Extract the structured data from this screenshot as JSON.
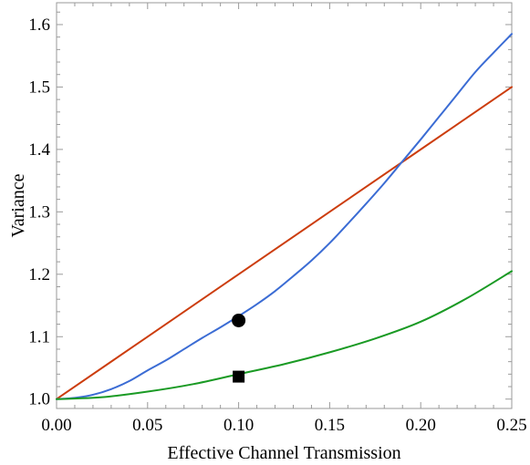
{
  "chart_data": {
    "type": "line",
    "title": "",
    "xlabel": "Effective Channel Transmission",
    "ylabel": "Variance",
    "xlim": [
      0,
      0.25
    ],
    "ylim": [
      0.985,
      1.635
    ],
    "xticks": [
      0,
      0.05,
      0.1,
      0.15,
      0.2,
      0.25
    ],
    "xtick_labels": [
      "0.00",
      "0.05",
      "0.10",
      "0.15",
      "0.20",
      "0.25"
    ],
    "yticks": [
      1.0,
      1.1,
      1.2,
      1.3,
      1.4,
      1.5,
      1.6
    ],
    "ytick_labels": [
      "1.0",
      "1.1",
      "1.2",
      "1.3",
      "1.4",
      "1.5",
      "1.6"
    ],
    "grid": false,
    "series": [
      {
        "color": "#cc3d0e",
        "x": [
          0,
          0.05,
          0.1,
          0.15,
          0.2,
          0.25
        ],
        "y": [
          1.0,
          1.1,
          1.2,
          1.3,
          1.4,
          1.5
        ]
      },
      {
        "color": "#3b6cd4",
        "x": [
          0,
          0.01,
          0.02,
          0.03,
          0.04,
          0.05,
          0.06,
          0.07,
          0.08,
          0.09,
          0.1,
          0.11,
          0.12,
          0.13,
          0.14,
          0.15,
          0.16,
          0.17,
          0.18,
          0.19,
          0.2,
          0.21,
          0.22,
          0.23,
          0.24,
          0.25
        ],
        "y": [
          1.0,
          1.002,
          1.007,
          1.016,
          1.029,
          1.046,
          1.062,
          1.08,
          1.098,
          1.115,
          1.133,
          1.152,
          1.173,
          1.197,
          1.222,
          1.25,
          1.281,
          1.313,
          1.346,
          1.381,
          1.416,
          1.452,
          1.488,
          1.524,
          1.555,
          1.585
        ]
      },
      {
        "color": "#1a9a24",
        "x": [
          0,
          0.025,
          0.05,
          0.075,
          0.1,
          0.125,
          0.15,
          0.175,
          0.2,
          0.225,
          0.25
        ],
        "y": [
          1.0,
          1.003,
          1.012,
          1.024,
          1.04,
          1.056,
          1.075,
          1.097,
          1.124,
          1.161,
          1.205
        ]
      }
    ],
    "markers": [
      {
        "shape": "circle",
        "x": 0.1,
        "y": 1.126
      },
      {
        "shape": "square",
        "x": 0.1,
        "y": 1.036
      }
    ]
  }
}
